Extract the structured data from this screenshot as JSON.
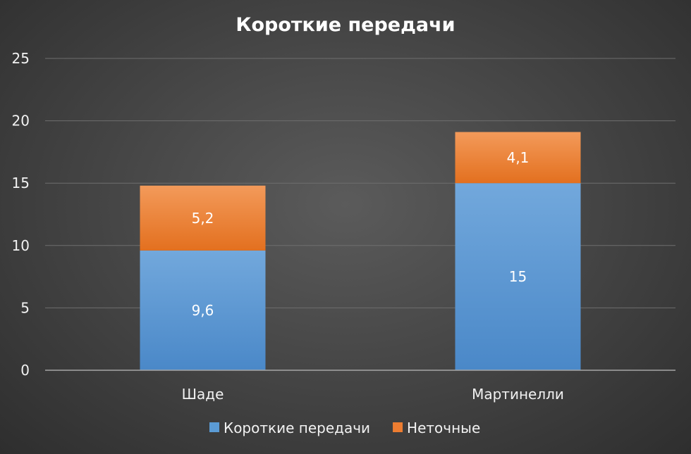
{
  "chart_data": {
    "type": "bar",
    "stacked": true,
    "title": "Короткие передачи",
    "categories": [
      "Шаде",
      "Мартинелли"
    ],
    "series": [
      {
        "name": "Короткие передачи",
        "values": [
          9.6,
          15
        ],
        "labels": [
          "9,6",
          "15"
        ],
        "color": "#5b9bd5"
      },
      {
        "name": "Неточные",
        "values": [
          5.2,
          4.1
        ],
        "labels": [
          "5,2",
          "4,1"
        ],
        "color": "#ed7d31"
      }
    ],
    "yticks": [
      "0",
      "5",
      "10",
      "15",
      "20",
      "25"
    ],
    "ylim": [
      0,
      25
    ],
    "grid": true,
    "legend": "bottom"
  }
}
